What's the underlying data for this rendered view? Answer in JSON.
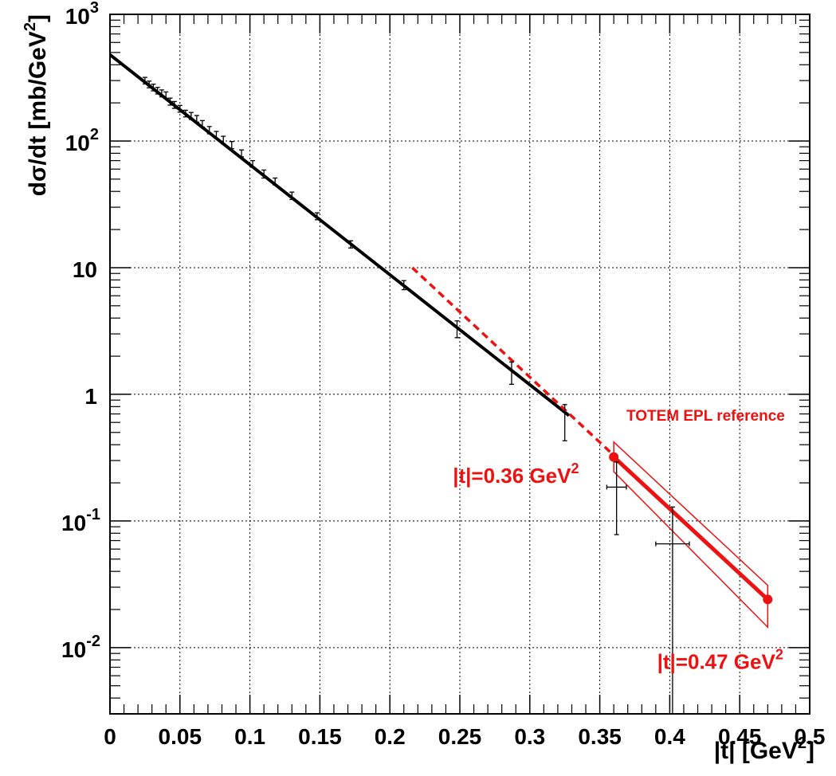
{
  "chart_data": {
    "type": "scatter",
    "xlabel": "|t| [GeV",
    "xlabel_sup": "2",
    "xlabel_tail": "]",
    "ylabel": "dσ/dt [mb/GeV",
    "ylabel_sup": "2",
    "ylabel_tail": "]",
    "xlim": [
      0,
      0.5
    ],
    "ylim": [
      0.003,
      1000
    ],
    "yscale": "log",
    "grid": true,
    "x_ticks": [
      0,
      0.05,
      0.1,
      0.15,
      0.2,
      0.25,
      0.3,
      0.35,
      0.4,
      0.45,
      0.5
    ],
    "x_tick_labels": [
      "0",
      "0.05",
      "0.1",
      "0.15",
      "0.2",
      "0.25",
      "0.3",
      "0.35",
      "0.4",
      "0.45",
      "0.5"
    ],
    "y_ticks": [
      {
        "value": 1000,
        "base": "10",
        "exp": "3"
      },
      {
        "value": 100,
        "base": "10",
        "exp": "2"
      },
      {
        "value": 10,
        "base": "10",
        "exp": ""
      },
      {
        "value": 1,
        "base": "1",
        "exp": ""
      },
      {
        "value": 0.1,
        "base": "10",
        "exp": "-1"
      },
      {
        "value": 0.01,
        "base": "10",
        "exp": "-2"
      }
    ],
    "series": [
      {
        "kind": "errorbars",
        "color": "#000000",
        "points": [
          {
            "x": 0.025,
            "y": 300,
            "ey": 18
          },
          {
            "x": 0.028,
            "y": 280,
            "ey": 17
          },
          {
            "x": 0.031,
            "y": 265,
            "ey": 16
          },
          {
            "x": 0.034,
            "y": 250,
            "ey": 15
          },
          {
            "x": 0.037,
            "y": 238,
            "ey": 15
          },
          {
            "x": 0.04,
            "y": 230,
            "ey": 14
          },
          {
            "x": 0.043,
            "y": 205,
            "ey": 13
          },
          {
            "x": 0.046,
            "y": 193,
            "ey": 12
          },
          {
            "x": 0.05,
            "y": 180,
            "ey": 11
          },
          {
            "x": 0.054,
            "y": 165,
            "ey": 10
          },
          {
            "x": 0.058,
            "y": 158,
            "ey": 10
          },
          {
            "x": 0.062,
            "y": 150,
            "ey": 9
          },
          {
            "x": 0.066,
            "y": 137,
            "ey": 8
          },
          {
            "x": 0.071,
            "y": 122,
            "ey": 8
          },
          {
            "x": 0.076,
            "y": 112,
            "ey": 7
          },
          {
            "x": 0.081,
            "y": 102,
            "ey": 7
          },
          {
            "x": 0.087,
            "y": 93,
            "ey": 6
          },
          {
            "x": 0.094,
            "y": 80,
            "ey": 5
          },
          {
            "x": 0.102,
            "y": 66,
            "ey": 4
          },
          {
            "x": 0.11,
            "y": 55,
            "ey": 4
          },
          {
            "x": 0.118,
            "y": 48,
            "ey": 3
          },
          {
            "x": 0.13,
            "y": 37,
            "ey": 2.5
          },
          {
            "x": 0.148,
            "y": 25.5,
            "ey": 1.6
          },
          {
            "x": 0.172,
            "y": 15.3,
            "ey": 1.0
          },
          {
            "x": 0.21,
            "y": 7.3,
            "ey": 0.6
          },
          {
            "x": 0.248,
            "y": 3.3,
            "ey": 0.5
          },
          {
            "x": 0.287,
            "y": 1.5,
            "ey": 0.3
          },
          {
            "x": 0.325,
            "y": 0.63,
            "ey": 0.2
          },
          {
            "x": 0.362,
            "y": 0.185,
            "ey": 0.107,
            "ex": 0.007
          },
          {
            "x": 0.402,
            "y": 0.066,
            "ey": 0.063,
            "ex": 0.012
          }
        ]
      },
      {
        "kind": "fit-line",
        "color": "#000000",
        "x": [
          0.0,
          0.328
        ],
        "y": [
          480,
          0.68
        ]
      },
      {
        "kind": "extrapolation-dashed",
        "color": "#ee1111",
        "x": [
          0.216,
          0.36
        ],
        "y": [
          10.0,
          0.33
        ]
      },
      {
        "kind": "reference-line",
        "color": "#ee1111",
        "x": [
          0.36,
          0.47
        ],
        "y": [
          0.32,
          0.024
        ]
      },
      {
        "kind": "reference-band",
        "color": "#ee1111",
        "upper": {
          "x": [
            0.36,
            0.47
          ],
          "y": [
            0.42,
            0.031
          ]
        },
        "lower": {
          "x": [
            0.36,
            0.47
          ],
          "y": [
            0.245,
            0.0145
          ]
        }
      }
    ],
    "annotations": [
      {
        "id": "ref-label",
        "text": "TOTEM EPL reference",
        "x": 0.369,
        "y": 0.62,
        "size": 19
      },
      {
        "id": "t036-label",
        "text": "|t|=0.36 GeV",
        "sup": "2",
        "x": 0.245,
        "y": 0.2,
        "size": 26
      },
      {
        "id": "t047-label",
        "text": "|t|=0.47 GeV",
        "sup": "2",
        "x": 0.391,
        "y": 0.0068,
        "size": 26
      }
    ]
  }
}
